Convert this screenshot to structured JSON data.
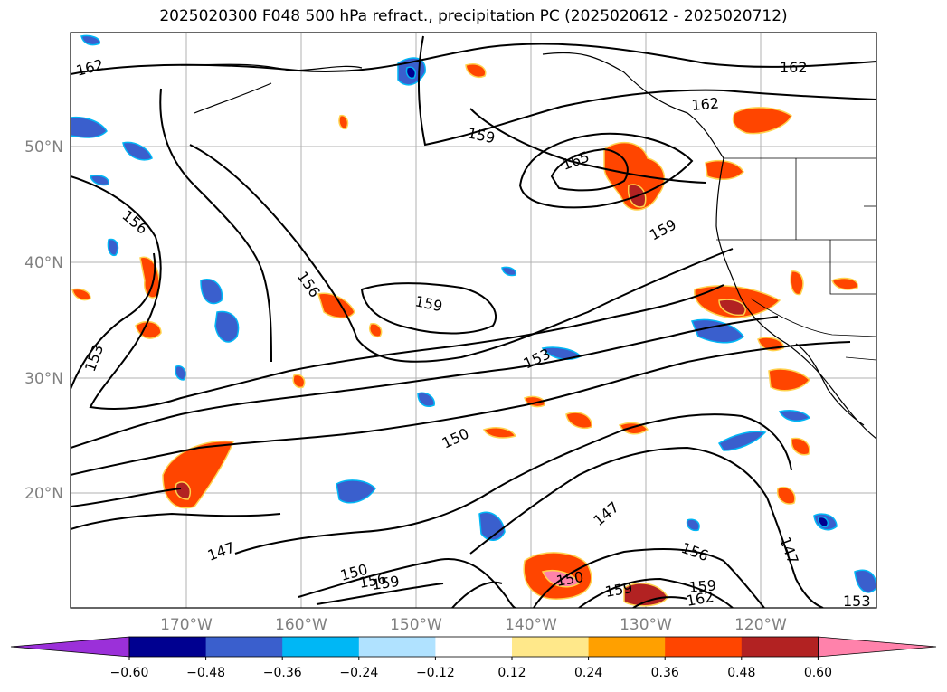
{
  "title": "2025020300 F048 500 hPa refract., precipitation PC (2025020612 - 2025020712)",
  "lat_labels": [
    "50°N",
    "40°N",
    "30°N",
    "20°N"
  ],
  "lon_labels": [
    "170°W",
    "160°W",
    "150°W",
    "140°W",
    "130°W",
    "120°W"
  ],
  "contour_labels": [
    "162",
    "162",
    "162",
    "159",
    "165",
    "159",
    "156",
    "156",
    "159",
    "153",
    "153",
    "150",
    "147",
    "147",
    "147",
    "156",
    "150",
    "156",
    "159",
    "159",
    "150",
    "159",
    "162",
    "153"
  ],
  "colorbar": {
    "ticks": [
      "−0.60",
      "−0.48",
      "−0.36",
      "−0.24",
      "−0.12",
      "0.12",
      "0.24",
      "0.36",
      "0.48",
      "0.60"
    ],
    "colors": [
      "#9b30d9",
      "#000090",
      "#3a5fcd",
      "#00b7f5",
      "#b0e2ff",
      "#ffffff",
      "#ffe88a",
      "#ffa000",
      "#ff4500",
      "#b22222",
      "#ff82ab"
    ]
  }
}
